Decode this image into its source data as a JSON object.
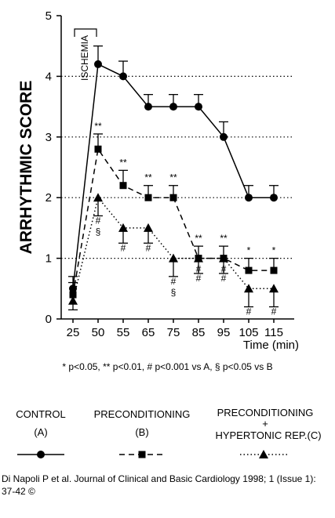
{
  "chart_data": {
    "type": "line",
    "x": [
      25,
      50,
      55,
      65,
      75,
      85,
      95,
      105,
      115
    ],
    "xtick_labels": [
      "25",
      "50",
      "55",
      "65",
      "75",
      "85",
      "95",
      "105",
      "115"
    ],
    "xlabel": "Time (min)",
    "ylabel": "ARRHYTHMIC SCORE",
    "ylim": [
      0,
      5
    ],
    "yticks": [
      "0",
      "1",
      "2",
      "3",
      "4",
      "5"
    ],
    "grid": "dotted horizontal at 1, 2, 3, 4",
    "ischemia_label": "ISCHEMIA",
    "ischemia_range": [
      25,
      50
    ],
    "series": [
      {
        "name": "CONTROL",
        "group": "(A)",
        "marker": "circle",
        "linestyle": "solid",
        "values": [
          0.5,
          4.2,
          4.0,
          3.5,
          3.5,
          3.5,
          3.0,
          2.0,
          2.0
        ],
        "error_up": [
          0.2,
          0.3,
          0.25,
          0.2,
          0.2,
          0.2,
          0.25,
          0.2,
          0.2
        ]
      },
      {
        "name": "PRECONDITIONING",
        "group": "(B)",
        "marker": "square",
        "linestyle": "dashed",
        "values": [
          0.4,
          2.8,
          2.2,
          2.0,
          2.0,
          1.0,
          1.0,
          0.8,
          0.8
        ],
        "error_up": [
          0.2,
          0.25,
          0.25,
          0.2,
          0.2,
          0.2,
          0.2,
          0.2,
          0.2
        ],
        "annotations_above": [
          "",
          "**",
          "**",
          "**",
          "**",
          "**",
          "**",
          "*",
          "*"
        ],
        "annotations_below": [
          "",
          "",
          "",
          "",
          "",
          "#",
          "#",
          "",
          ""
        ]
      },
      {
        "name": "PRECONDITIONING + HYPERTONIC REP.(C)",
        "group": "",
        "marker": "triangle",
        "linestyle": "dotted",
        "values": [
          0.3,
          2.0,
          1.5,
          1.5,
          1.0,
          1.0,
          1.0,
          0.5,
          0.5
        ],
        "error_down": [
          0.15,
          0.3,
          0.25,
          0.25,
          0.3,
          0.25,
          0.25,
          0.3,
          0.3
        ],
        "annotations_below": [
          "",
          "#\n§",
          "#",
          "#",
          "#\n§",
          "#",
          "#",
          "#",
          "#"
        ]
      }
    ]
  },
  "footnote": "* p<0.05, ** p<0.01, # p<0.001 vs A, § p<0.05 vs B",
  "legend": {
    "control_label": "CONTROL",
    "control_group": "(A)",
    "precond_label": "PRECONDITIONING",
    "precond_group": "(B)",
    "hyper_label_line1": "PRECONDITIONING",
    "hyper_label_line2": "+",
    "hyper_label_line3": "HYPERTONIC REP.(C)"
  },
  "citation": "Di Napoli P et al. Journal of Clinical and Basic Cardiology 1998; 1 (Issue 1): 37-42 ©"
}
